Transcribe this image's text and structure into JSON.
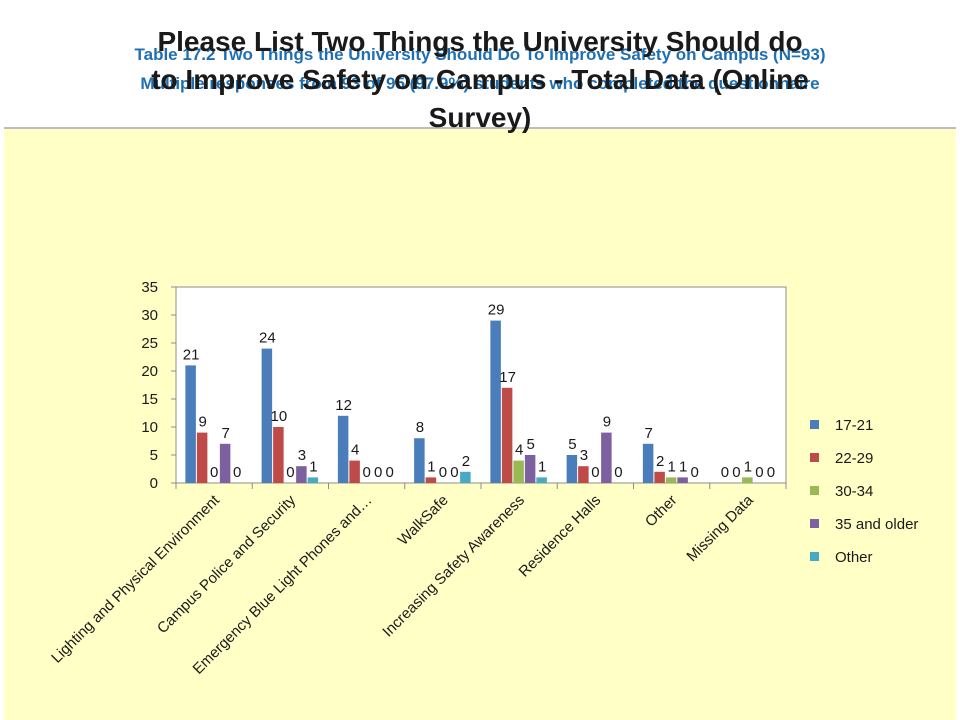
{
  "caption": {
    "line1": "Table 17.2   Two Things the University Should Do To Improve Safety on Campus (N=93)",
    "line2": "Multiple responses from 93 of 95 (97.9%) students who completed the questionnaire"
  },
  "chart_data": {
    "type": "bar",
    "title_lines": [
      "Please List Two Things the University Should do",
      "to Improve Safety on Campus - Total Data (Online",
      "Survey)"
    ],
    "categories": [
      "Lighting and Physical Environment",
      "Campus Police and Security",
      "Emergency Blue Light Phones and…",
      "WalkSafe",
      "Increasing Safety Awareness",
      "Residence Halls",
      "Other",
      "Missing Data"
    ],
    "series": [
      {
        "name": "17-21",
        "color": "#4a7ebb",
        "values": [
          21,
          24,
          12,
          8,
          29,
          5,
          7,
          null
        ]
      },
      {
        "name": "22-29",
        "color": "#be4b48",
        "values": [
          9,
          10,
          4,
          1,
          17,
          3,
          2,
          0
        ]
      },
      {
        "name": "30-34",
        "color": "#98b954",
        "values": [
          0,
          0,
          0,
          0,
          4,
          0,
          1,
          1
        ]
      },
      {
        "name": "35 and older",
        "color": "#7d60a0",
        "values": [
          7,
          3,
          0,
          0,
          5,
          9,
          1,
          0
        ]
      },
      {
        "name": "Other",
        "color": "#46aac5",
        "values": [
          0,
          1,
          null,
          2,
          1,
          null,
          0,
          0
        ]
      }
    ],
    "data_labels": [
      [
        "21",
        "9",
        "0",
        "7",
        "0"
      ],
      [
        "24",
        "10",
        "0",
        "3",
        "1"
      ],
      [
        "12",
        "4",
        "0",
        "0",
        "0"
      ],
      [
        "8",
        "1",
        "0",
        "0",
        "2"
      ],
      [
        "29",
        "17",
        "4",
        "5",
        "1"
      ],
      [
        "5",
        "3",
        "0",
        "9",
        "0"
      ],
      [
        "7",
        "2",
        "1",
        "1",
        "0"
      ],
      [
        "0",
        "0",
        "1",
        "0",
        "0"
      ]
    ],
    "yticks": [
      0,
      5,
      10,
      15,
      20,
      25,
      30,
      35
    ],
    "ylim": [
      0,
      35
    ],
    "grid": false,
    "legend_position": "right"
  }
}
